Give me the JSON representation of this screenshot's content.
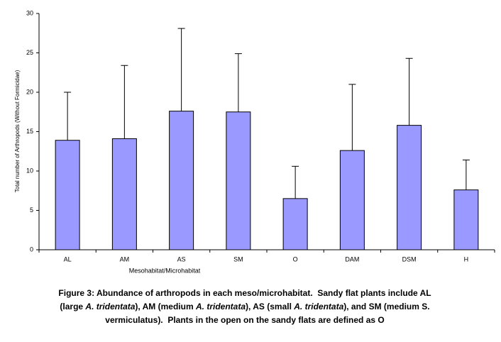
{
  "chart_data": {
    "type": "bar",
    "x_label": "Mesohabitat/Microhabitat",
    "y_label": "Total number of Arthropods (Without Formicidae)",
    "categories": [
      "AL",
      "AM",
      "AS",
      "SM",
      "O",
      "DAM",
      "DSM",
      "H"
    ],
    "values": [
      13.9,
      14.1,
      17.6,
      17.5,
      6.5,
      12.6,
      15.8,
      7.6
    ],
    "errors": [
      6.1,
      9.3,
      10.5,
      7.4,
      4.1,
      8.4,
      8.5,
      3.8
    ],
    "color": "#9999ff",
    "ylim": [
      0,
      30
    ],
    "yticks": [
      0,
      5,
      10,
      15,
      20,
      25,
      30
    ],
    "grid": false
  },
  "caption": {
    "lines": [
      [
        "Figure 3: Abundance of arthropods in each meso/microhabitat.  Sandy flat plants include AL"
      ],
      [
        "(large ",
        "A. tridentata",
        "), AM (medium ",
        "A. tridentata",
        "), AS (small ",
        "A. tridentata",
        "), and SM (medium S."
      ],
      [
        "vermiculatus).  Plants in the open on the sandy flats are defined as O"
      ]
    ]
  }
}
